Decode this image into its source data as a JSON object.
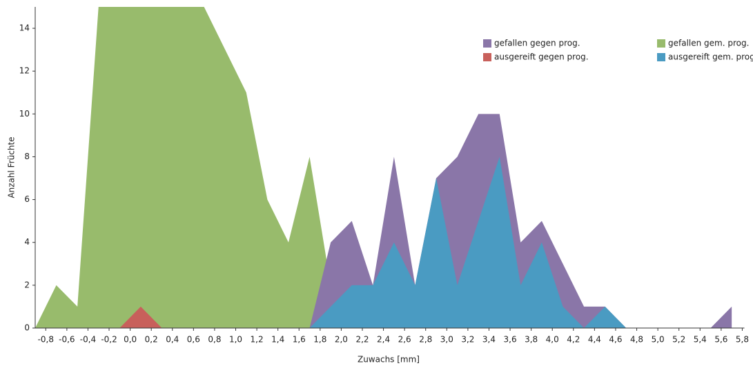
{
  "chart_data": {
    "type": "area",
    "x_label": "Zuwachs [mm]",
    "y_label": "Anzahl Früchte",
    "x": [
      -0.9,
      -0.7,
      -0.5,
      -0.3,
      -0.1,
      0.1,
      0.3,
      0.5,
      0.7,
      0.9,
      1.1,
      1.3,
      1.5,
      1.7,
      1.9,
      2.1,
      2.3,
      2.5,
      2.7,
      2.9,
      3.1,
      3.3,
      3.5,
      3.7,
      3.9,
      4.1,
      4.3,
      4.5,
      4.7,
      4.9,
      5.1,
      5.3,
      5.5,
      5.7
    ],
    "series": [
      {
        "name": "gefallen gegen prog.",
        "color": "#8a76a8",
        "values": [
          0,
          0,
          0,
          0,
          0,
          0,
          0,
          0,
          0,
          0,
          0,
          0,
          0,
          0,
          4,
          5,
          2,
          8,
          2,
          7,
          8,
          10,
          10,
          4,
          5,
          3,
          1,
          1,
          0,
          0,
          0,
          0,
          0,
          1
        ]
      },
      {
        "name": "gefallen gem. prog.",
        "color": "#98bb6c",
        "values": [
          0,
          2,
          1,
          15,
          15,
          15,
          15,
          15,
          15,
          13,
          11,
          6,
          4,
          8,
          2,
          0,
          0,
          0,
          0,
          0,
          0,
          0,
          0,
          0,
          0,
          0,
          0,
          0,
          0,
          0,
          0,
          0,
          0,
          0
        ]
      },
      {
        "name": "ausgereift gegen prog.",
        "color": "#c8605b",
        "values": [
          0,
          0,
          0,
          0,
          0,
          1,
          0,
          0,
          0,
          0,
          0,
          0,
          0,
          0,
          0,
          0,
          0,
          0,
          0,
          0,
          0,
          0,
          0,
          0,
          0,
          0,
          0,
          0,
          0,
          0,
          0,
          0,
          0,
          0
        ]
      },
      {
        "name": "ausgereift gem. prog.",
        "color": "#4a9bc2",
        "values": [
          0,
          0,
          0,
          0,
          0,
          0,
          0,
          0,
          0,
          0,
          0,
          0,
          0,
          0,
          1,
          2,
          2,
          4,
          2,
          7,
          2,
          5,
          8,
          2,
          4,
          1,
          0,
          1,
          0,
          0,
          0,
          0,
          0,
          0
        ]
      }
    ],
    "xlim": [
      -0.9,
      5.82
    ],
    "xticks": [
      {
        "value": -0.8,
        "label": "-0,8"
      },
      {
        "value": -0.6,
        "label": "-0,6"
      },
      {
        "value": -0.4,
        "label": "-0,4"
      },
      {
        "value": -0.2,
        "label": "-0,2"
      },
      {
        "value": 0,
        "label": "0,0"
      },
      {
        "value": 0.2,
        "label": "0,2"
      },
      {
        "value": 0.4,
        "label": "0,4"
      },
      {
        "value": 0.6,
        "label": "0,6"
      },
      {
        "value": 0.8,
        "label": "0,8"
      },
      {
        "value": 1,
        "label": "1,0"
      },
      {
        "value": 1.2,
        "label": "1,2"
      },
      {
        "value": 1.4,
        "label": "1,4"
      },
      {
        "value": 1.6,
        "label": "1,6"
      },
      {
        "value": 1.8,
        "label": "1,8"
      },
      {
        "value": 2,
        "label": "2,0"
      },
      {
        "value": 2.2,
        "label": "2,2"
      },
      {
        "value": 2.4,
        "label": "2,4"
      },
      {
        "value": 2.6,
        "label": "2,6"
      },
      {
        "value": 2.8,
        "label": "2,8"
      },
      {
        "value": 3,
        "label": "3,0"
      },
      {
        "value": 3.2,
        "label": "3,2"
      },
      {
        "value": 3.4,
        "label": "3,4"
      },
      {
        "value": 3.6,
        "label": "3,6"
      },
      {
        "value": 3.8,
        "label": "3,8"
      },
      {
        "value": 4,
        "label": "4,0"
      },
      {
        "value": 4.2,
        "label": "4,2"
      },
      {
        "value": 4.4,
        "label": "4,4"
      },
      {
        "value": 4.6,
        "label": "4,6"
      },
      {
        "value": 4.8,
        "label": "4,8"
      },
      {
        "value": 5,
        "label": "5,0"
      },
      {
        "value": 5.2,
        "label": "5,2"
      },
      {
        "value": 5.4,
        "label": "5,4"
      },
      {
        "value": 5.6,
        "label": "5,6"
      },
      {
        "value": 5.8,
        "label": "5,8"
      }
    ],
    "ylim": [
      0,
      15
    ],
    "yticks": [
      0,
      2,
      4,
      6,
      8,
      10,
      12,
      14
    ],
    "grid": false,
    "legend": "top-right"
  }
}
